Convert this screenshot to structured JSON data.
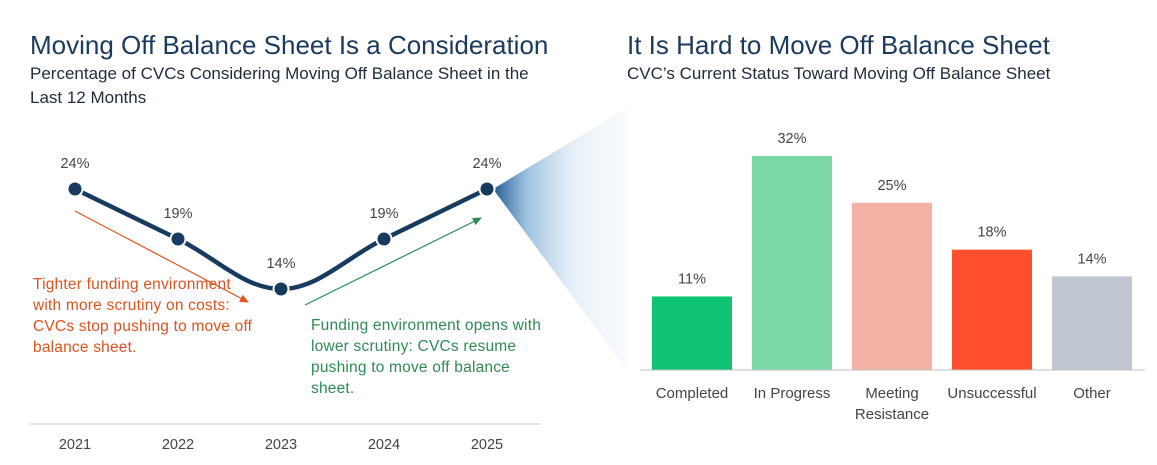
{
  "left": {
    "title": "Moving Off Balance Sheet Is a Consideration",
    "subtitle": "Percentage of CVCs Considering Moving Off Balance Sheet in the Last 12 Months",
    "annotation_decline": "Tighter funding environment with more scrutiny on costs: CVCs stop pushing to move off balance sheet.",
    "annotation_rise": "Funding environment opens with lower scrutiny: CVCs resume pushing to move off balance sheet."
  },
  "right": {
    "title": "It Is Hard to Move Off Balance Sheet",
    "subtitle": "CVC’s Current Status Toward Moving Off Balance Sheet"
  },
  "colors": {
    "line": "#173b5e",
    "decline_arrow": "#e0521e",
    "rise_arrow": "#2e8b57",
    "completed": "#0ec373",
    "in_progress": "#7dd8a8",
    "meeting_resistance": "#f3b1a5",
    "unsuccessful": "#ff4f2c",
    "other": "#c0c7d0"
  },
  "chart_data": [
    {
      "type": "line",
      "title": "Moving Off Balance Sheet Is a Consideration",
      "subtitle": "Percentage of CVCs Considering Moving Off Balance Sheet in the Last 12 Months",
      "x": [
        "2021",
        "2022",
        "2023",
        "2024",
        "2025"
      ],
      "values": [
        24,
        19,
        14,
        19,
        24
      ],
      "labels": [
        "24%",
        "19%",
        "14%",
        "19%",
        "24%"
      ],
      "ylim": [
        14,
        24
      ],
      "xlabel": "",
      "ylabel": "",
      "grid": false
    },
    {
      "type": "bar",
      "title": "It Is Hard to Move Off Balance Sheet",
      "subtitle": "CVC’s Current Status Toward Moving Off Balance Sheet",
      "categories": [
        "Completed",
        "In Progress",
        "Meeting Resistance",
        "Unsuccessful",
        "Other"
      ],
      "category_lines": [
        [
          "Completed"
        ],
        [
          "In Progress"
        ],
        [
          "Meeting",
          "Resistance"
        ],
        [
          "Unsuccessful"
        ],
        [
          "Other"
        ]
      ],
      "values": [
        11,
        32,
        25,
        18,
        14
      ],
      "labels": [
        "11%",
        "32%",
        "25%",
        "18%",
        "14%"
      ],
      "color_keys": [
        "completed",
        "in_progress",
        "meeting_resistance",
        "unsuccessful",
        "other"
      ],
      "ylim": [
        0,
        32
      ],
      "xlabel": "",
      "ylabel": "",
      "grid": false
    }
  ]
}
